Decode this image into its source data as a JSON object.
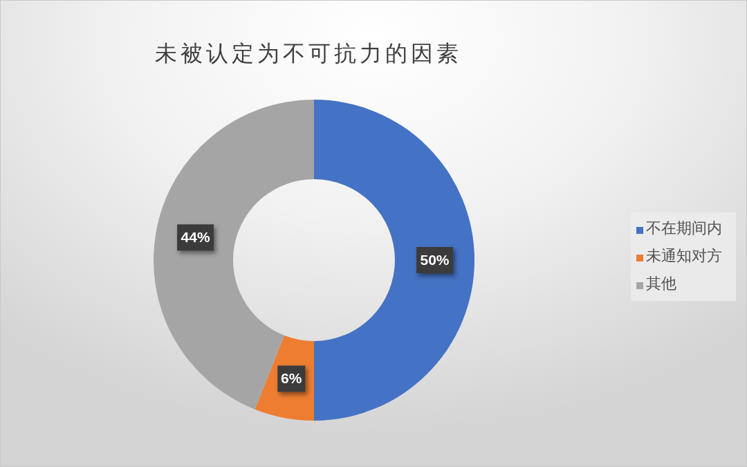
{
  "chart_data": {
    "type": "donut",
    "title": "未被认定为不可抗力的因素",
    "categories": [
      "不在期间内",
      "未通知对方",
      "其他"
    ],
    "values": [
      50,
      6,
      44
    ],
    "colors": [
      "#4472c4",
      "#ed7d31",
      "#a5a5a5"
    ],
    "value_labels": [
      "50%",
      "6%",
      "44%"
    ],
    "legend": "right"
  }
}
